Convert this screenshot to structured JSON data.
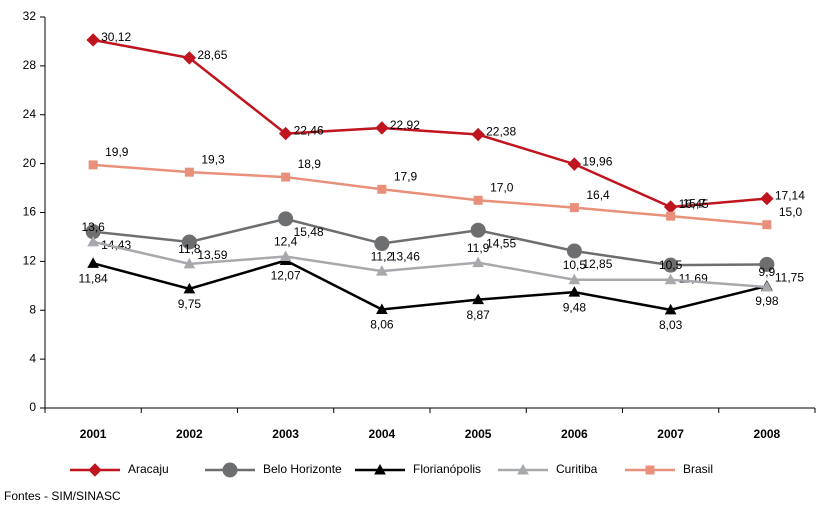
{
  "chart_data": {
    "type": "line",
    "categories": [
      "2001",
      "2002",
      "2003",
      "2004",
      "2005",
      "2006",
      "2007",
      "2008"
    ],
    "ylim": [
      0,
      32
    ],
    "yticks": [
      0,
      4,
      8,
      12,
      16,
      20,
      24,
      28,
      32
    ],
    "legend": "bottom",
    "source": "Fontes - SIM/SINASC",
    "series": [
      {
        "name": "Aracaju",
        "color": "#c0141e",
        "marker": "diamond",
        "values": [
          30.12,
          28.65,
          22.46,
          22.92,
          22.38,
          19.96,
          16.45,
          17.14
        ],
        "value_labels": [
          "30,12",
          "28,65",
          "22,46",
          "22,92",
          "22,38",
          "19,96",
          "16,45",
          "17,14"
        ]
      },
      {
        "name": "Belo Horizonte",
        "color": "#6d6e70",
        "marker": "circle",
        "values": [
          14.43,
          13.59,
          15.48,
          13.46,
          14.55,
          12.85,
          11.69,
          11.75
        ],
        "value_labels": [
          "14,43",
          "13,59",
          "15,48",
          "13,46",
          "14,55",
          "12,85",
          "11,69",
          "11,75"
        ]
      },
      {
        "name": "Florianópolis",
        "color": "#000000",
        "marker": "triangle",
        "values": [
          11.84,
          9.75,
          12.07,
          8.06,
          8.87,
          9.48,
          8.03,
          9.98
        ],
        "value_labels": [
          "11,84",
          "9,75",
          "12,07",
          "8,06",
          "8,87",
          "9,48",
          "8,03",
          "9,98"
        ]
      },
      {
        "name": "Curitiba",
        "color": "#a7a9ac",
        "marker": "triangle",
        "values": [
          13.6,
          11.8,
          12.4,
          11.2,
          11.9,
          10.5,
          10.5,
          9.9
        ],
        "value_labels": [
          "13,6",
          "11,8",
          "12,4",
          "11,2",
          "11,9",
          "10,5",
          "10,5",
          "9,9"
        ]
      },
      {
        "name": "Brasil",
        "color": "#e8907a",
        "marker": "square",
        "values": [
          19.9,
          19.3,
          18.9,
          17.9,
          17.0,
          16.4,
          15.7,
          15.0
        ],
        "value_labels": [
          "19,9",
          "19,3",
          "18,9",
          "17,9",
          "17,0",
          "16,4",
          "15,7",
          "15,0"
        ]
      }
    ]
  }
}
